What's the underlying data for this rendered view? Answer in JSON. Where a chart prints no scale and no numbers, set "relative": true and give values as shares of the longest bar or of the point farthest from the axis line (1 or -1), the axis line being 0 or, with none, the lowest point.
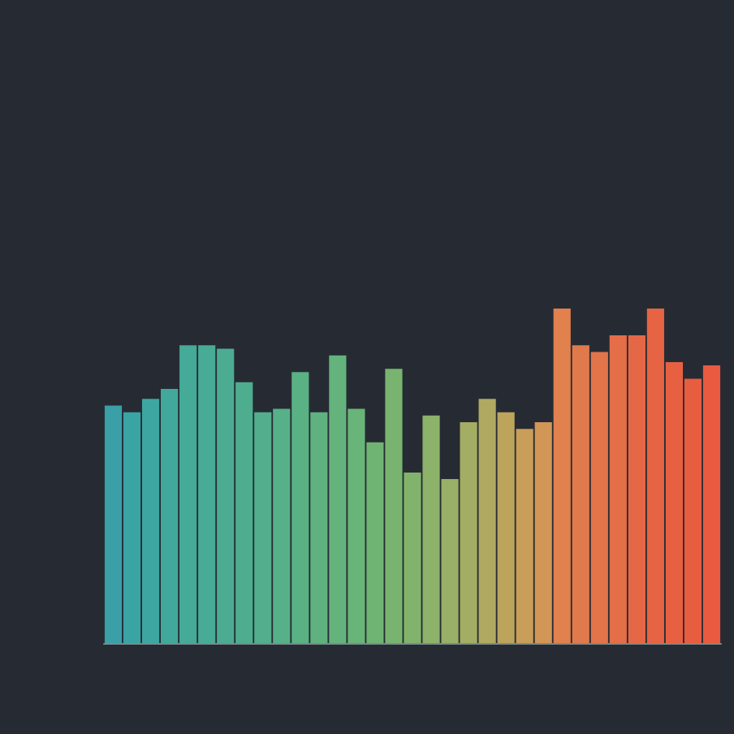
{
  "chart_data": {
    "type": "bar",
    "relative": true,
    "categories": [
      null,
      null,
      null,
      null,
      null,
      null,
      null,
      null,
      null,
      null,
      null,
      null,
      null,
      null,
      null,
      null,
      null,
      null,
      null,
      null,
      null,
      null,
      null,
      null,
      null,
      null,
      null,
      null,
      null,
      null,
      null,
      null,
      null
    ],
    "values": [
      0.71,
      0.69,
      0.73,
      0.76,
      0.89,
      0.89,
      0.88,
      0.78,
      0.69,
      0.7,
      0.81,
      0.69,
      0.86,
      0.7,
      0.6,
      0.82,
      0.51,
      0.68,
      0.49,
      0.66,
      0.73,
      0.69,
      0.64,
      0.66,
      1.0,
      0.89,
      0.87,
      0.92,
      0.92,
      1.0,
      0.84,
      0.79,
      0.83
    ],
    "colors": [
      "#3a9fa6",
      "#3aa3a3",
      "#3ea6a0",
      "#42a89c",
      "#45aa98",
      "#48ab95",
      "#4bac92",
      "#4ead8f",
      "#52ae8c",
      "#56b088",
      "#5ab184",
      "#5fb280",
      "#64b37c",
      "#69b478",
      "#70b474",
      "#78b470",
      "#82b36c",
      "#8db26a",
      "#98b067",
      "#a4ad64",
      "#b0a961",
      "#bca45d",
      "#c89e5a",
      "#d29656",
      "#e0814e",
      "#e07a4c",
      "#e2744a",
      "#e46e48",
      "#e56846",
      "#e66444",
      "#e86042",
      "#e85c40",
      "#e95a40"
    ]
  }
}
